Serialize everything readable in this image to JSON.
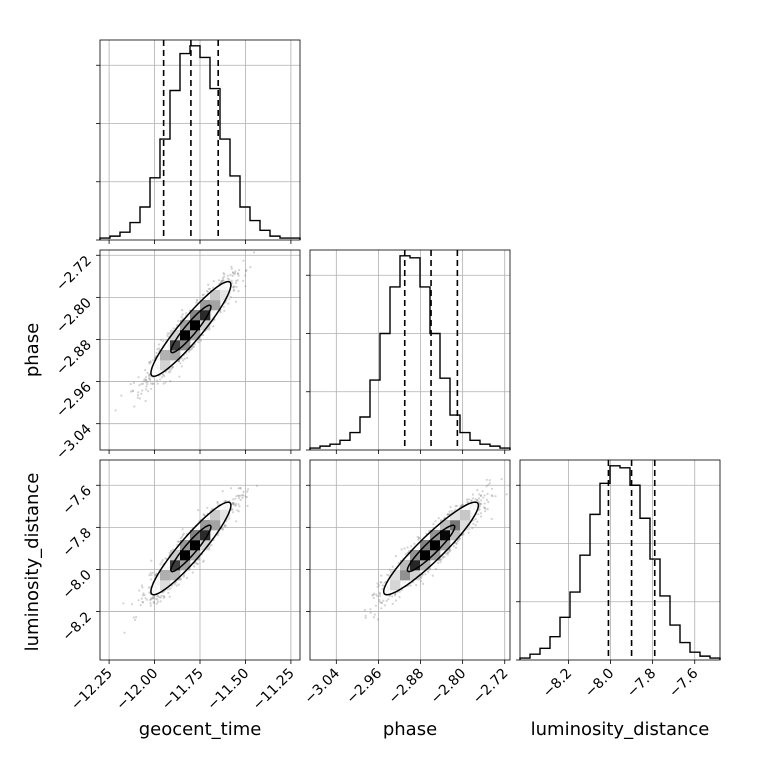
{
  "chart_data": {
    "type": "corner",
    "parameters": [
      {
        "name": "geocent_time",
        "range": [
          -12.3,
          -11.2
        ],
        "ticks": [
          -12.25,
          -12.0,
          -11.75,
          -11.5,
          -11.25
        ],
        "tick_labels": [
          "−12.25",
          "−12.00",
          "−11.75",
          "−11.50",
          "−11.25"
        ],
        "median": -11.8,
        "quantiles": [
          -11.95,
          -11.65
        ]
      },
      {
        "name": "phase",
        "range": [
          -3.09,
          -2.71
        ],
        "ticks": [
          -3.04,
          -2.96,
          -2.88,
          -2.8,
          -2.72
        ],
        "tick_labels": [
          "−3.04",
          "−2.96",
          "−2.88",
          "−2.80",
          "−2.72"
        ],
        "median": -2.86,
        "quantiles": [
          -2.91,
          -2.81
        ]
      },
      {
        "name": "luminosity_distance",
        "range": [
          -8.43,
          -7.48
        ],
        "ticks": [
          -8.2,
          -8.0,
          -7.8,
          -7.6
        ],
        "tick_labels": [
          "−8.2",
          "−8.0",
          "−7.8",
          "−7.6"
        ],
        "median": -7.9,
        "quantiles": [
          -8.01,
          -7.79
        ]
      }
    ],
    "histograms": [
      {
        "parameter": "geocent_time",
        "bin_edges": [
          -12.3,
          -12.245,
          -12.19,
          -12.135,
          -12.08,
          -12.025,
          -11.97,
          -11.915,
          -11.86,
          -11.805,
          -11.75,
          -11.695,
          -11.64,
          -11.585,
          -11.53,
          -11.475,
          -11.42,
          -11.365,
          -11.31,
          -11.255,
          -11.2
        ],
        "counts": [
          1,
          2,
          4,
          9,
          17,
          32,
          52,
          77,
          96,
          100,
          94,
          78,
          52,
          33,
          17,
          10,
          5,
          2,
          1,
          1
        ],
        "yticks": [
          0,
          30,
          60,
          90
        ]
      },
      {
        "parameter": "phase",
        "bin_edges": [
          -3.09,
          -3.071,
          -3.052,
          -3.033,
          -3.014,
          -2.995,
          -2.976,
          -2.957,
          -2.938,
          -2.919,
          -2.9,
          -2.881,
          -2.862,
          -2.843,
          -2.824,
          -2.805,
          -2.786,
          -2.767,
          -2.748,
          -2.729,
          -2.71
        ],
        "counts": [
          1,
          2,
          3,
          5,
          9,
          17,
          36,
          60,
          84,
          100,
          99,
          84,
          60,
          37,
          18,
          9,
          5,
          3,
          2,
          1
        ],
        "yticks": [
          0,
          30,
          60,
          90
        ]
      },
      {
        "parameter": "luminosity_distance",
        "bin_edges": [
          -8.43,
          -8.3825,
          -8.335,
          -8.2875,
          -8.24,
          -8.1925,
          -8.145,
          -8.0975,
          -8.05,
          -8.0025,
          -7.955,
          -7.9075,
          -7.86,
          -7.8125,
          -7.765,
          -7.7175,
          -7.67,
          -7.6225,
          -7.575,
          -7.5275,
          -7.48
        ],
        "counts": [
          1,
          3,
          6,
          12,
          22,
          35,
          54,
          75,
          91,
          100,
          99,
          90,
          73,
          52,
          33,
          18,
          9,
          4,
          2,
          1
        ],
        "yticks": [
          0,
          30,
          60,
          90
        ]
      }
    ],
    "scatter_panels": [
      {
        "x": "geocent_time",
        "y": "phase",
        "center": [
          -11.8,
          -2.86
        ],
        "std": [
          0.11,
          0.045
        ],
        "correlation": 0.93,
        "contour_levels_sigma": [
          1,
          2
        ]
      },
      {
        "x": "geocent_time",
        "y": "luminosity_distance",
        "center": [
          -11.8,
          -7.9
        ],
        "std": [
          0.11,
          0.11
        ],
        "correlation": 0.93,
        "contour_levels_sigma": [
          1,
          2
        ]
      },
      {
        "x": "phase",
        "y": "luminosity_distance",
        "center": [
          -2.86,
          -7.9
        ],
        "std": [
          0.045,
          0.11
        ],
        "correlation": 0.93,
        "contour_levels_sigma": [
          1,
          2
        ]
      }
    ],
    "grid": true,
    "colors": {
      "line": "#000000",
      "points": "#808080",
      "grid": "#b0b0b0"
    }
  }
}
